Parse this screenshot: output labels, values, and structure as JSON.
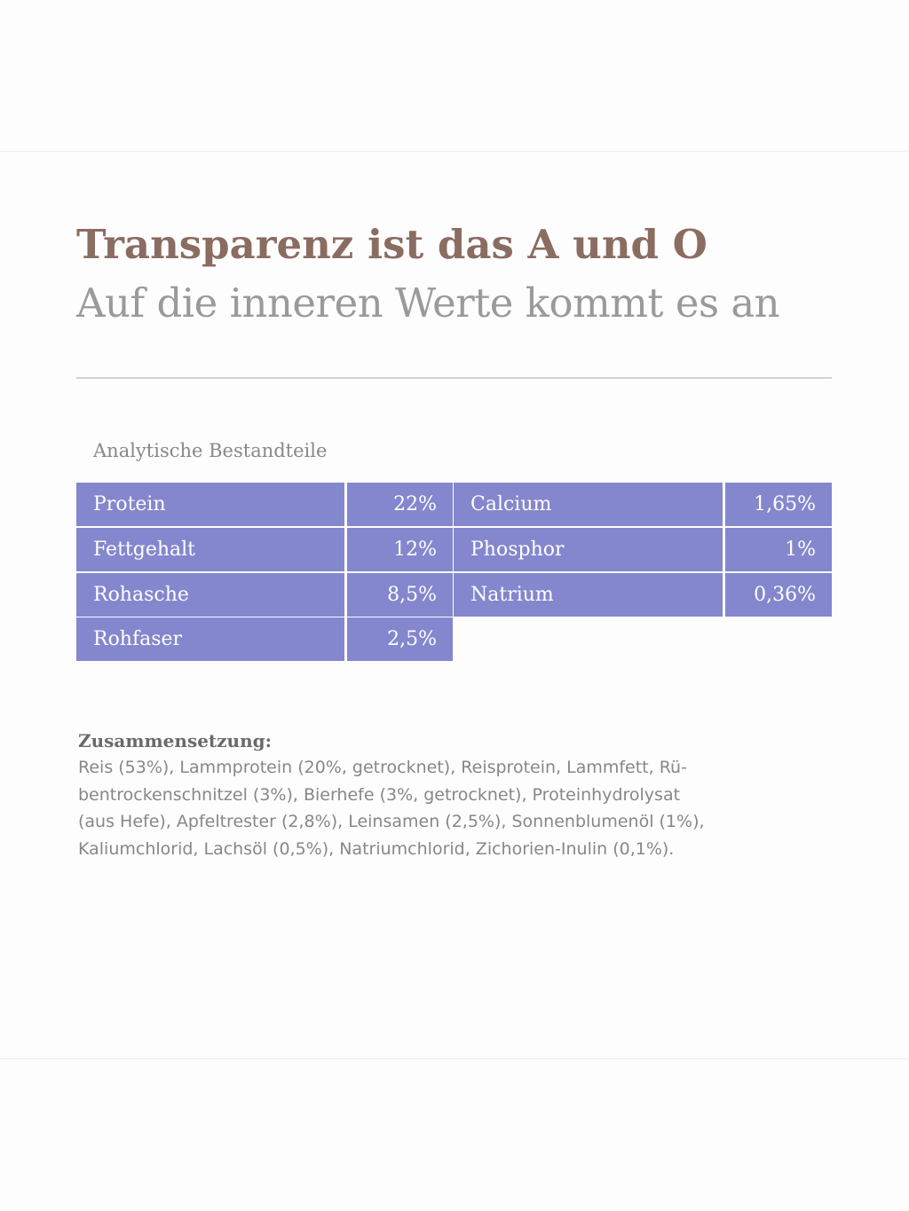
{
  "header": {
    "title": "Transparenz ist das A und O",
    "subtitle": "Auf die inneren Werte kommt es an"
  },
  "colors": {
    "title": "#8a6c60",
    "subtitle": "#9a9a9a",
    "table_background": "#8487cd",
    "table_text": "#ffffff",
    "body_text": "#878787"
  },
  "analysis": {
    "caption": "Analytische Bestandteile",
    "left": [
      {
        "label": "Protein",
        "value": "22%"
      },
      {
        "label": "Fettgehalt",
        "value": "12%"
      },
      {
        "label": "Rohasche",
        "value": "8,5%"
      },
      {
        "label": "Rohfaser",
        "value": "2,5%"
      }
    ],
    "right": [
      {
        "label": "Calcium",
        "value": "1,65%"
      },
      {
        "label": "Phosphor",
        "value": "1%"
      },
      {
        "label": "Natrium",
        "value": "0,36%"
      }
    ]
  },
  "composition": {
    "heading": "Zusammensetzung:",
    "lines": [
      "Reis (53%), Lammprotein (20%, getrocknet), Reisprotein, Lammfett, Rü-",
      "bentrockenschnitzel (3%), Bierhefe (3%, getrocknet), Proteinhydrolysat",
      "(aus Hefe), Apfeltrester (2,8%), Leinsamen (2,5%), Sonnenblumenöl (1%),",
      "Kaliumchlorid, Lachsöl (0,5%), Natriumchlorid, Zichorien-Inulin (0,1%)."
    ]
  }
}
